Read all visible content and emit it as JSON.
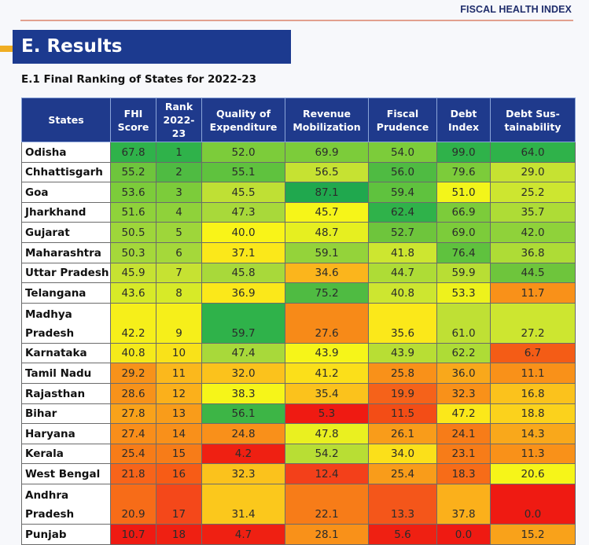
{
  "header": {
    "report_label": "FISCAL HEALTH INDEX",
    "section_title": "E. Results",
    "subtitle": "E.1 Final Ranking of States for 2022-23"
  },
  "table": {
    "columns": [
      "States",
      "FHI Score",
      "Rank 2022-23",
      "Quality of Expenditure",
      "Revenue Mobilization",
      "Fiscal Prudence",
      "Debt Index",
      "Debt Sustainability"
    ],
    "column_headers_display": {
      "states": "States",
      "fhi": [
        "FHI",
        "Score"
      ],
      "rank": [
        "Rank",
        "2022-",
        "23"
      ],
      "qoe": [
        "Quality of",
        "Expenditure"
      ],
      "revmob": [
        "Revenue",
        "Mobilization"
      ],
      "fiscal": [
        "Fiscal",
        "Prudence"
      ],
      "debt": [
        "Debt",
        "Index"
      ],
      "debtsus": [
        "Debt Sus-",
        "tainability"
      ]
    },
    "rows": [
      {
        "state": "Odisha",
        "fhi": "67.8",
        "rank": "1",
        "qoe": "52.0",
        "revmob": "69.9",
        "fiscal": "54.0",
        "debt": "99.0",
        "debtsus": "64.0"
      },
      {
        "state": "Chhattisgarh",
        "fhi": "55.2",
        "rank": "2",
        "qoe": "55.1",
        "revmob": "56.5",
        "fiscal": "56.0",
        "debt": "79.6",
        "debtsus": "29.0"
      },
      {
        "state": "Goa",
        "fhi": "53.6",
        "rank": "3",
        "qoe": "45.5",
        "revmob": "87.1",
        "fiscal": "59.4",
        "debt": "51.0",
        "debtsus": "25.2"
      },
      {
        "state": "Jharkhand",
        "fhi": "51.6",
        "rank": "4",
        "qoe": "47.3",
        "revmob": "45.7",
        "fiscal": "62.4",
        "debt": "66.9",
        "debtsus": "35.7"
      },
      {
        "state": "Gujarat",
        "fhi": "50.5",
        "rank": "5",
        "qoe": "40.0",
        "revmob": "48.7",
        "fiscal": "52.7",
        "debt": "69.0",
        "debtsus": "42.0"
      },
      {
        "state": "Maharashtra",
        "fhi": "50.3",
        "rank": "6",
        "qoe": "37.1",
        "revmob": "59.1",
        "fiscal": "41.8",
        "debt": "76.4",
        "debtsus": "36.8"
      },
      {
        "state": "Uttar Pradesh",
        "fhi": "45.9",
        "rank": "7",
        "qoe": "45.8",
        "revmob": "34.6",
        "fiscal": "44.7",
        "debt": "59.9",
        "debtsus": "44.5"
      },
      {
        "state": "Telangana",
        "fhi": "43.6",
        "rank": "8",
        "qoe": "36.9",
        "revmob": "75.2",
        "fiscal": "40.8",
        "debt": "53.3",
        "debtsus": "11.7"
      },
      {
        "state": "Madhya Pradesh",
        "state_lines": [
          "Madhya",
          "Pradesh"
        ],
        "fhi": "42.2",
        "rank": "9",
        "qoe": "59.7",
        "revmob": "27.6",
        "fiscal": "35.6",
        "debt": "61.0",
        "debtsus": "27.2"
      },
      {
        "state": "Karnataka",
        "fhi": "40.8",
        "rank": "10",
        "qoe": "47.4",
        "revmob": "43.9",
        "fiscal": "43.9",
        "debt": "62.2",
        "debtsus": "6.7"
      },
      {
        "state": "Tamil Nadu",
        "fhi": "29.2",
        "rank": "11",
        "qoe": "32.0",
        "revmob": "41.2",
        "fiscal": "25.8",
        "debt": "36.0",
        "debtsus": "11.1"
      },
      {
        "state": "Rajasthan",
        "fhi": "28.6",
        "rank": "12",
        "qoe": "38.3",
        "revmob": "35.4",
        "fiscal": "19.9",
        "debt": "32.3",
        "debtsus": "16.8"
      },
      {
        "state": "Bihar",
        "fhi": "27.8",
        "rank": "13",
        "qoe": "56.1",
        "revmob": "5.3",
        "fiscal": "11.5",
        "debt": "47.2",
        "debtsus": "18.8"
      },
      {
        "state": "Haryana",
        "fhi": "27.4",
        "rank": "14",
        "qoe": "24.8",
        "revmob": "47.8",
        "fiscal": "26.1",
        "debt": "24.1",
        "debtsus": "14.3"
      },
      {
        "state": "Kerala",
        "fhi": "25.4",
        "rank": "15",
        "qoe": "4.2",
        "revmob": "54.2",
        "fiscal": "34.0",
        "debt": "23.1",
        "debtsus": "11.3"
      },
      {
        "state": "West Bengal",
        "fhi": "21.8",
        "rank": "16",
        "qoe": "32.3",
        "revmob": "12.4",
        "fiscal": "25.4",
        "debt": "18.3",
        "debtsus": "20.6"
      },
      {
        "state": "Andhra Pradesh",
        "state_lines": [
          "Andhra",
          "Pradesh"
        ],
        "fhi": "20.9",
        "rank": "17",
        "qoe": "31.4",
        "revmob": "22.1",
        "fiscal": "13.3",
        "debt": "37.8",
        "debtsus": "0.0"
      },
      {
        "state": "Punjab",
        "fhi": "10.7",
        "rank": "18",
        "qoe": "4.7",
        "revmob": "28.1",
        "fiscal": "5.6",
        "debt": "0.0",
        "debtsus": "15.2"
      }
    ],
    "cell_colors": [
      [
        "#2fb24a",
        "#2fb24a",
        "#7ccc3a",
        "#7ccc3a",
        "#7ccc3a",
        "#2fb24a",
        "#2fb24a"
      ],
      [
        "#6ec53c",
        "#4fbb42",
        "#5fc23e",
        "#c6e232",
        "#4fbb42",
        "#7ccc3a",
        "#c6e232"
      ],
      [
        "#7ccc3a",
        "#7ccc3a",
        "#bfe034",
        "#20a84e",
        "#5fc23e",
        "#f3f51a",
        "#cde630"
      ],
      [
        "#8fd23a",
        "#8fd23a",
        "#a8d93a",
        "#f6f519",
        "#2fb24a",
        "#7ccc3a",
        "#aedc36"
      ],
      [
        "#9ed63a",
        "#9ed63a",
        "#f9f418",
        "#e6ef20",
        "#6ec53c",
        "#7ccc3a",
        "#8fd23a"
      ],
      [
        "#a5d83a",
        "#a5d83a",
        "#fbe81a",
        "#94d33a",
        "#cde630",
        "#5fc23e",
        "#aedc36"
      ],
      [
        "#c6e232",
        "#c6e232",
        "#a8d93a",
        "#fbb51c",
        "#aedc36",
        "#b8de34",
        "#6ec53c"
      ],
      [
        "#d7ea28",
        "#d7ea28",
        "#fbe81a",
        "#4fbb42",
        "#cde630",
        "#eef21c",
        "#f99119"
      ],
      [
        "#f6ef1a",
        "#f6ef1a",
        "#2fb24a",
        "#f78a18",
        "#fbe81a",
        "#bfe034",
        "#cde630"
      ],
      [
        "#f5ea1a",
        "#f9e219",
        "#a8d93a",
        "#f6f519",
        "#b8de34",
        "#aedc36",
        "#f45c16"
      ],
      [
        "#f7921a",
        "#fbb81c",
        "#fbc21c",
        "#fbdf1a",
        "#f99119",
        "#f9a81b",
        "#f99119"
      ],
      [
        "#f7921a",
        "#fbb01b",
        "#f6f519",
        "#fbc21c",
        "#f5621a",
        "#f99119",
        "#fbc21c"
      ],
      [
        "#f9a21a",
        "#f99c1a",
        "#3db546",
        "#ef1a12",
        "#f34d16",
        "#fbe81a",
        "#fbd21c"
      ],
      [
        "#f98e1a",
        "#f9901a",
        "#f9901a",
        "#eaf020",
        "#f99c1a",
        "#f77c18",
        "#f9a81b"
      ],
      [
        "#f77c18",
        "#f77c18",
        "#ef2012",
        "#b8de34",
        "#fbe01a",
        "#f77c18",
        "#f99119"
      ],
      [
        "#f7641a",
        "#f75c16",
        "#fbc21c",
        "#f3401a",
        "#f99c1a",
        "#f76c18",
        "#f6f519"
      ],
      [
        "#f76c18",
        "#f4481a",
        "#fbc81c",
        "#f77c18",
        "#f4561a",
        "#fbb01b",
        "#ef1a12"
      ],
      [
        "#ef1a12",
        "#ef2012",
        "#ef2012",
        "#f99119",
        "#ef2012",
        "#ef1a12",
        "#f9a21a"
      ]
    ]
  },
  "chart_data": {
    "type": "table",
    "title": "E.1 Final Ranking of States for 2022-23",
    "columns": [
      "States",
      "FHI Score",
      "Rank 2022-23",
      "Quality of Expenditure",
      "Revenue Mobilization",
      "Fiscal Prudence",
      "Debt Index",
      "Debt Sustainability"
    ],
    "rows": [
      [
        "Odisha",
        67.8,
        1,
        52.0,
        69.9,
        54.0,
        99.0,
        64.0
      ],
      [
        "Chhattisgarh",
        55.2,
        2,
        55.1,
        56.5,
        56.0,
        79.6,
        29.0
      ],
      [
        "Goa",
        53.6,
        3,
        45.5,
        87.1,
        59.4,
        51.0,
        25.2
      ],
      [
        "Jharkhand",
        51.6,
        4,
        47.3,
        45.7,
        62.4,
        66.9,
        35.7
      ],
      [
        "Gujarat",
        50.5,
        5,
        40.0,
        48.7,
        52.7,
        69.0,
        42.0
      ],
      [
        "Maharashtra",
        50.3,
        6,
        37.1,
        59.1,
        41.8,
        76.4,
        36.8
      ],
      [
        "Uttar Pradesh",
        45.9,
        7,
        45.8,
        34.6,
        44.7,
        59.9,
        44.5
      ],
      [
        "Telangana",
        43.6,
        8,
        36.9,
        75.2,
        40.8,
        53.3,
        11.7
      ],
      [
        "Madhya Pradesh",
        42.2,
        9,
        59.7,
        27.6,
        35.6,
        61.0,
        27.2
      ],
      [
        "Karnataka",
        40.8,
        10,
        47.4,
        43.9,
        43.9,
        62.2,
        6.7
      ],
      [
        "Tamil Nadu",
        29.2,
        11,
        32.0,
        41.2,
        25.8,
        36.0,
        11.1
      ],
      [
        "Rajasthan",
        28.6,
        12,
        38.3,
        35.4,
        19.9,
        32.3,
        16.8
      ],
      [
        "Bihar",
        27.8,
        13,
        56.1,
        5.3,
        11.5,
        47.2,
        18.8
      ],
      [
        "Haryana",
        27.4,
        14,
        24.8,
        47.8,
        26.1,
        24.1,
        14.3
      ],
      [
        "Kerala",
        25.4,
        15,
        4.2,
        54.2,
        34.0,
        23.1,
        11.3
      ],
      [
        "West Bengal",
        21.8,
        16,
        32.3,
        12.4,
        25.4,
        18.3,
        20.6
      ],
      [
        "Andhra Pradesh",
        20.9,
        17,
        31.4,
        22.1,
        13.3,
        37.8,
        0.0
      ],
      [
        "Punjab",
        10.7,
        18,
        4.7,
        28.1,
        5.6,
        0.0,
        15.2
      ]
    ],
    "color_scale": "green (high) to yellow to red (low)"
  },
  "colors": {
    "header_bg": "#1f3a8c",
    "title_bg": "#1c3a8f",
    "accent": "#f0ae23",
    "rule": "#e2a08e"
  }
}
